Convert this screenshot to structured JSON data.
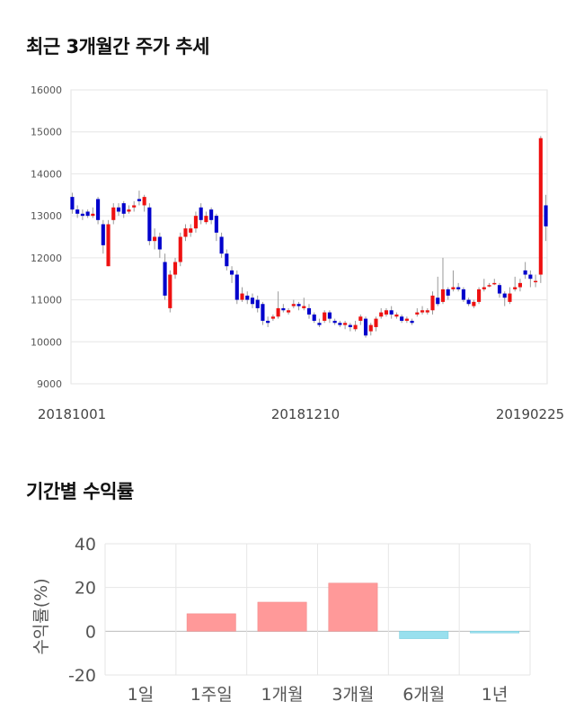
{
  "titles": {
    "price": "최근 3개월간 주가 추세",
    "returns": "기간별 수익률"
  },
  "chart_data": [
    {
      "type": "candlestick",
      "title": "최근 3개월간 주가 추세",
      "ylim": [
        9000,
        16000
      ],
      "yticks": [
        "16000",
        "15000",
        "14000",
        "13000",
        "12000",
        "11000",
        "10000",
        "9000"
      ],
      "xticks": [
        "20181001",
        "20181210",
        "20190225"
      ],
      "colors": {
        "up": "#ee1111",
        "down": "#0000cc",
        "wick": "#999999"
      },
      "candles": [
        [
          13450,
          13150,
          13550,
          13050
        ],
        [
          13150,
          13050,
          13250,
          12950
        ],
        [
          13050,
          13000,
          13150,
          12900
        ],
        [
          13100,
          13000,
          13150,
          12950
        ],
        [
          13000,
          13050,
          13200,
          12950
        ],
        [
          13400,
          12900,
          13450,
          12800
        ],
        [
          12800,
          12300,
          12900,
          12100
        ],
        [
          11800,
          12800,
          12900,
          11800
        ],
        [
          12900,
          13200,
          13300,
          12800
        ],
        [
          13200,
          13100,
          13300,
          13000
        ],
        [
          13300,
          13050,
          13350,
          12950
        ],
        [
          13100,
          13150,
          13250,
          13050
        ],
        [
          13200,
          13250,
          13350,
          13100
        ],
        [
          13400,
          13350,
          13600,
          13250
        ],
        [
          13250,
          13450,
          13500,
          13100
        ],
        [
          13200,
          12400,
          13300,
          12300
        ],
        [
          12400,
          12500,
          12700,
          12200
        ],
        [
          12500,
          12200,
          12600,
          12000
        ],
        [
          11900,
          11100,
          12100,
          11000
        ],
        [
          10800,
          11600,
          11700,
          10700
        ],
        [
          11600,
          11900,
          12000,
          11500
        ],
        [
          11900,
          12500,
          12600,
          11800
        ],
        [
          12500,
          12700,
          12800,
          12400
        ],
        [
          12600,
          12700,
          12800,
          12500
        ],
        [
          12700,
          13000,
          13100,
          12600
        ],
        [
          13200,
          12900,
          13300,
          12800
        ],
        [
          12850,
          13000,
          13100,
          12800
        ],
        [
          13150,
          12900,
          13200,
          12800
        ],
        [
          13000,
          12600,
          13050,
          12400
        ],
        [
          12500,
          12100,
          12600,
          12000
        ],
        [
          12100,
          11800,
          12200,
          11700
        ],
        [
          11700,
          11600,
          11800,
          11400
        ],
        [
          11600,
          11000,
          11700,
          10900
        ],
        [
          11000,
          11150,
          11300,
          10950
        ],
        [
          11100,
          11000,
          11200,
          10900
        ],
        [
          11050,
          10900,
          11150,
          10800
        ],
        [
          11000,
          10800,
          11100,
          10700
        ],
        [
          10900,
          10500,
          10950,
          10400
        ],
        [
          10500,
          10450,
          10600,
          10350
        ],
        [
          10550,
          10600,
          10650,
          10500
        ],
        [
          10600,
          10800,
          11200,
          10550
        ],
        [
          10800,
          10750,
          10900,
          10700
        ],
        [
          10700,
          10750,
          10800,
          10650
        ],
        [
          10850,
          10900,
          11000,
          10800
        ],
        [
          10900,
          10850,
          10950,
          10750
        ],
        [
          10800,
          10850,
          11050,
          10750
        ],
        [
          10800,
          10650,
          10900,
          10550
        ],
        [
          10650,
          10500,
          10700,
          10450
        ],
        [
          10450,
          10400,
          10550,
          10350
        ],
        [
          10500,
          10700,
          10750,
          10450
        ],
        [
          10700,
          10550,
          10750,
          10450
        ],
        [
          10500,
          10450,
          10550,
          10400
        ],
        [
          10450,
          10400,
          10500,
          10350
        ],
        [
          10400,
          10450,
          10500,
          10300
        ],
        [
          10400,
          10350,
          10450,
          10250
        ],
        [
          10300,
          10400,
          10500,
          10250
        ],
        [
          10500,
          10600,
          10650,
          10400
        ],
        [
          10550,
          10150,
          10600,
          10100
        ],
        [
          10250,
          10400,
          10450,
          10150
        ],
        [
          10350,
          10550,
          10600,
          10250
        ],
        [
          10600,
          10700,
          10800,
          10550
        ],
        [
          10650,
          10750,
          10800,
          10600
        ],
        [
          10750,
          10650,
          10850,
          10550
        ],
        [
          10600,
          10650,
          10700,
          10550
        ],
        [
          10600,
          10500,
          10650,
          10450
        ],
        [
          10500,
          10550,
          10600,
          10450
        ],
        [
          10500,
          10450,
          10550,
          10400
        ],
        [
          10650,
          10700,
          10800,
          10600
        ],
        [
          10700,
          10750,
          10850,
          10650
        ],
        [
          10700,
          10750,
          10800,
          10650
        ],
        [
          10750,
          11100,
          11200,
          10650
        ],
        [
          11050,
          10900,
          11550,
          10850
        ],
        [
          10950,
          11250,
          12000,
          10900
        ],
        [
          11250,
          11100,
          11300,
          11000
        ],
        [
          11250,
          11300,
          11700,
          11200
        ],
        [
          11300,
          11250,
          11400,
          11200
        ],
        [
          11250,
          11000,
          11300,
          10950
        ],
        [
          11000,
          10900,
          11050,
          10850
        ],
        [
          10850,
          10950,
          11000,
          10800
        ],
        [
          10950,
          11250,
          11300,
          10900
        ],
        [
          11250,
          11300,
          11500,
          11200
        ],
        [
          11350,
          11350,
          11400,
          11300
        ],
        [
          11400,
          11400,
          11500,
          11350
        ],
        [
          11350,
          11150,
          11400,
          11050
        ],
        [
          11150,
          11050,
          11200,
          10850
        ],
        [
          10950,
          11150,
          11300,
          10900
        ],
        [
          11250,
          11300,
          11550,
          11200
        ],
        [
          11300,
          11400,
          11500,
          11200
        ],
        [
          11700,
          11600,
          11900,
          11500
        ],
        [
          11600,
          11500,
          11700,
          11300
        ],
        [
          11450,
          11450,
          11600,
          11300
        ],
        [
          11600,
          14850,
          14900,
          11400
        ],
        [
          13250,
          12750,
          13500,
          12400
        ]
      ]
    },
    {
      "type": "bar",
      "title": "기간별 수익률",
      "categories": [
        "1일",
        "1주일",
        "1개월",
        "3개월",
        "6개월",
        "1년"
      ],
      "values": [
        0,
        8.0,
        13.3,
        22.0,
        -3.4,
        -0.8
      ],
      "ylabel": "수익률(%)",
      "ylim": [
        -20,
        40
      ],
      "yticks": [
        "40",
        "20",
        "0",
        "-20"
      ],
      "colors": {
        "positive": "#ff9999",
        "negative": "#99e0ee"
      }
    }
  ]
}
